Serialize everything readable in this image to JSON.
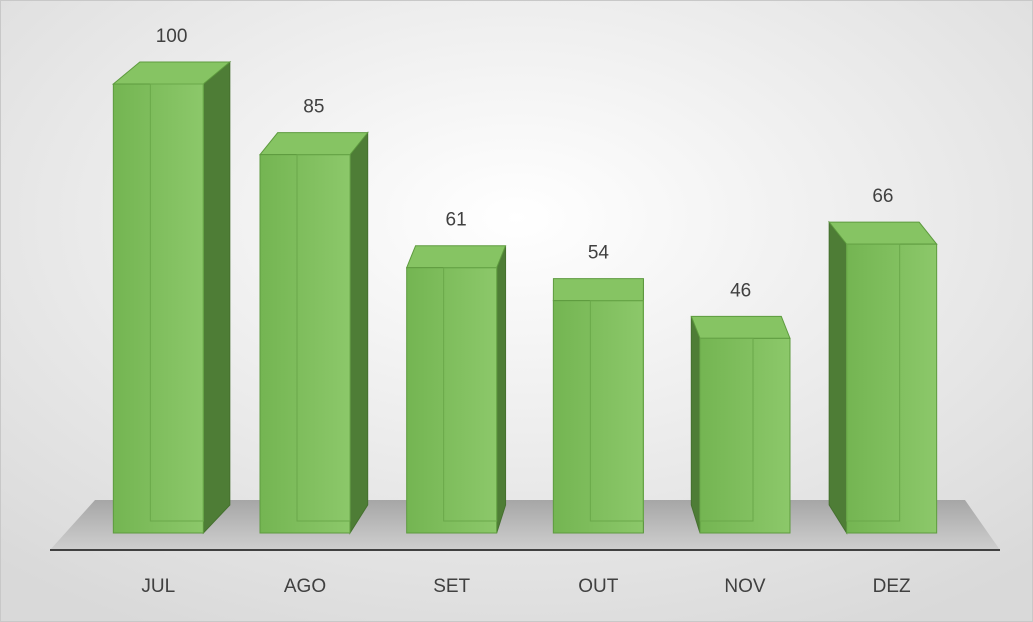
{
  "chart_data": {
    "type": "bar",
    "categories": [
      "JUL",
      "AGO",
      "SET",
      "OUT",
      "NOV",
      "DEZ"
    ],
    "values": [
      100,
      85,
      61,
      54,
      46,
      66
    ],
    "color": "#70ad47",
    "ylim": [
      0,
      100
    ]
  }
}
